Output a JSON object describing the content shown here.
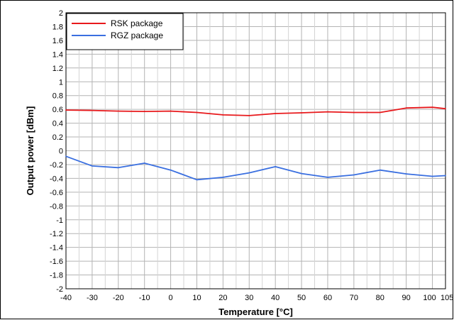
{
  "chart_data": {
    "type": "line",
    "xlabel": "Temperature [°C]",
    "ylabel": "Output power [dBm]",
    "xlim": [
      -40,
      105
    ],
    "ylim": [
      -2,
      2
    ],
    "x_ticks": [
      -40,
      -30,
      -20,
      -10,
      0,
      10,
      20,
      30,
      40,
      50,
      60,
      70,
      80,
      90,
      100,
      105
    ],
    "y_ticks": [
      -2,
      -1.8,
      -1.6,
      -1.4,
      -1.2,
      -1,
      -0.8,
      -0.6,
      -0.4,
      -0.2,
      0,
      0.2,
      0.4,
      0.6,
      0.8,
      1,
      1.2,
      1.4,
      1.6,
      1.8,
      2
    ],
    "grid": true,
    "legend_position": "top-left",
    "x": [
      -40,
      -30,
      -20,
      -10,
      0,
      10,
      20,
      30,
      40,
      50,
      60,
      70,
      80,
      90,
      100,
      105
    ],
    "series": [
      {
        "name": "RSK package",
        "color": "#e8191c",
        "values": [
          0.59,
          0.585,
          0.575,
          0.57,
          0.575,
          0.555,
          0.52,
          0.51,
          0.54,
          0.55,
          0.565,
          0.555,
          0.555,
          0.62,
          0.63,
          0.61
        ]
      },
      {
        "name": "RGZ package",
        "color": "#3a6fe0",
        "values": [
          -0.08,
          -0.22,
          -0.245,
          -0.18,
          -0.28,
          -0.42,
          -0.385,
          -0.32,
          -0.23,
          -0.33,
          -0.385,
          -0.35,
          -0.28,
          -0.335,
          -0.37,
          -0.36
        ]
      }
    ]
  }
}
